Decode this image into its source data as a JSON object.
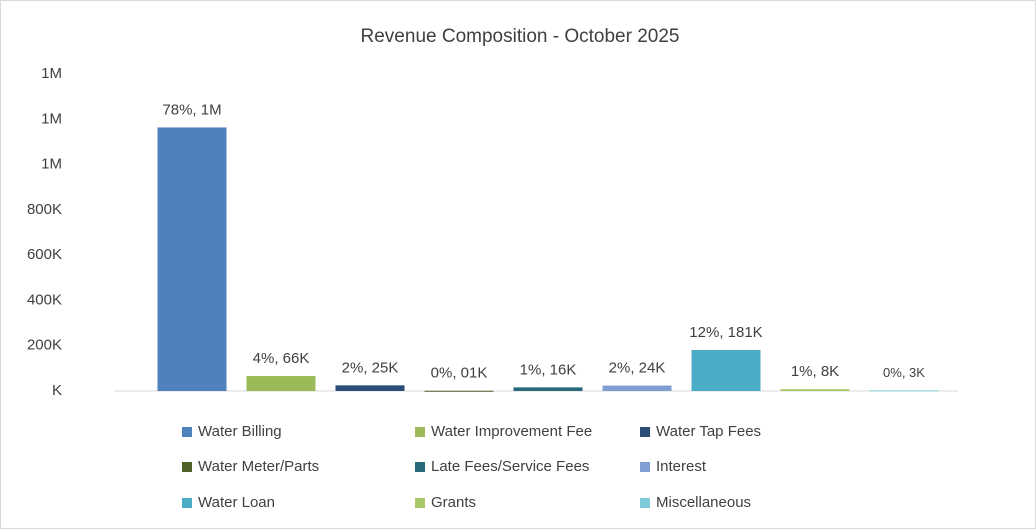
{
  "chart_data": {
    "type": "bar",
    "title": "Revenue Composition - October 2025",
    "categories": [
      "Water Billing",
      "Water Improvement Fee",
      "Water Tap Fees",
      "Water Meter/Parts",
      "Late Fees/Service Fees",
      "Interest",
      "Water Loan",
      "Grants",
      "Miscellaneous"
    ],
    "values": [
      1164000,
      66000,
      25000,
      1000,
      16000,
      24000,
      181000,
      8000,
      3000
    ],
    "value_labels": [
      "78%, 1M",
      "4%, 66K",
      "2%, 25K",
      "0%, 01K",
      "1%, 16K",
      "2%, 24K",
      "12%, 181K",
      "1%, 8K",
      "0%, 3K"
    ],
    "colors": [
      "#4f81bd",
      "#9bbb59",
      "#2c4d75",
      "#4f6228",
      "#276a7c",
      "#7f9fd3",
      "#4bacc6",
      "#a9c868",
      "#7fcbdc"
    ],
    "ylim": [
      0,
      1400000
    ],
    "yticks": [
      {
        "value": 0,
        "label": "K"
      },
      {
        "value": 200000,
        "label": "200K"
      },
      {
        "value": 400000,
        "label": "400K"
      },
      {
        "value": 600000,
        "label": "600K"
      },
      {
        "value": 800000,
        "label": "800K"
      },
      {
        "value": 1000000,
        "label": "1M"
      },
      {
        "value": 1200000,
        "label": "1M"
      },
      {
        "value": 1400000,
        "label": "1M"
      }
    ],
    "grid": false,
    "legend": "bottom"
  }
}
